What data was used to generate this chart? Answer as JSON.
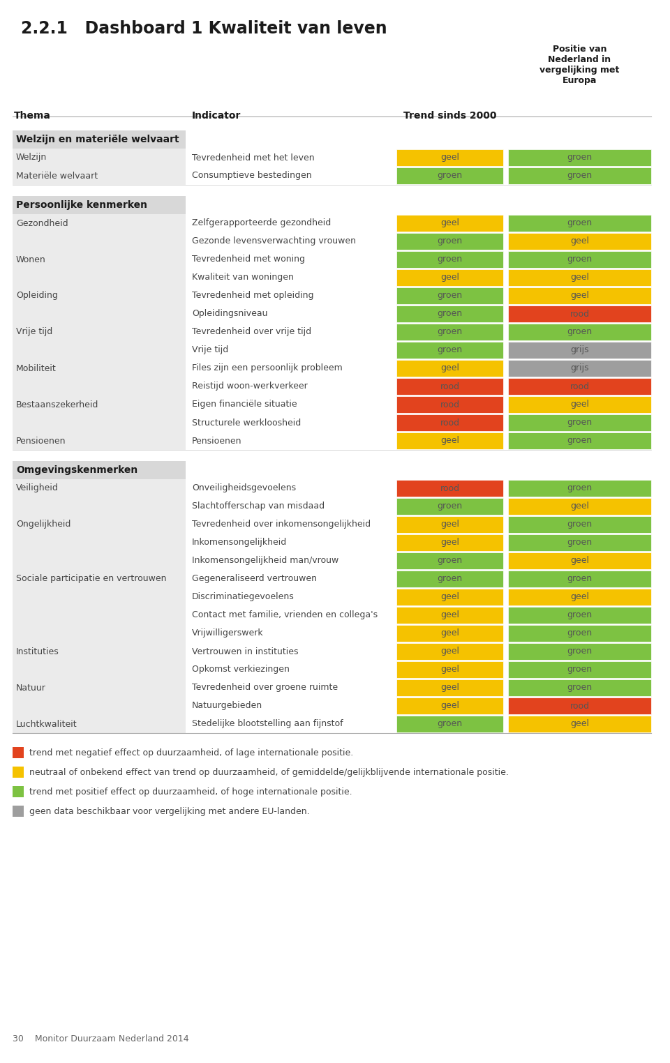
{
  "title": "2.2.1   Dashboard 1 Kwaliteit van leven",
  "colors": {
    "groen": "#7DC242",
    "geel": "#F5C200",
    "rood": "#E2431E",
    "grijs": "#9E9E9E"
  },
  "sections": [
    {
      "title": "Welzijn en materiële welvaart",
      "rows": [
        {
          "thema": "Welzijn",
          "indicator": "Tevredenheid met het leven",
          "trend": "geel",
          "positie": "groen"
        },
        {
          "thema": "Materiële welvaart",
          "indicator": "Consumptieve bestedingen",
          "trend": "groen",
          "positie": "groen"
        }
      ]
    },
    {
      "title": "Persoonlijke kenmerken",
      "rows": [
        {
          "thema": "Gezondheid",
          "indicator": "Zelfgerapporteerde gezondheid",
          "trend": "geel",
          "positie": "groen"
        },
        {
          "thema": "",
          "indicator": "Gezonde levensverwachting vrouwen",
          "trend": "groen",
          "positie": "geel"
        },
        {
          "thema": "Wonen",
          "indicator": "Tevredenheid met woning",
          "trend": "groen",
          "positie": "groen"
        },
        {
          "thema": "",
          "indicator": "Kwaliteit van woningen",
          "trend": "geel",
          "positie": "geel"
        },
        {
          "thema": "Opleiding",
          "indicator": "Tevredenheid met opleiding",
          "trend": "groen",
          "positie": "geel"
        },
        {
          "thema": "",
          "indicator": "Opleidingsniveau",
          "trend": "groen",
          "positie": "rood"
        },
        {
          "thema": "Vrije tijd",
          "indicator": "Tevredenheid over vrije tijd",
          "trend": "groen",
          "positie": "groen"
        },
        {
          "thema": "",
          "indicator": "Vrije tijd",
          "trend": "groen",
          "positie": "grijs"
        },
        {
          "thema": "Mobiliteit",
          "indicator": "Files zijn een persoonlijk probleem",
          "trend": "geel",
          "positie": "grijs"
        },
        {
          "thema": "",
          "indicator": "Reistijd woon-werkverkeer",
          "trend": "rood",
          "positie": "rood"
        },
        {
          "thema": "Bestaanszekerheid",
          "indicator": "Eigen financiële situatie",
          "trend": "rood",
          "positie": "geel"
        },
        {
          "thema": "",
          "indicator": "Structurele werkloosheid",
          "trend": "rood",
          "positie": "groen"
        },
        {
          "thema": "Pensioenen",
          "indicator": "Pensioenen",
          "trend": "geel",
          "positie": "groen"
        }
      ]
    },
    {
      "title": "Omgevingskenmerken",
      "rows": [
        {
          "thema": "Veiligheid",
          "indicator": "Onveiligheidsgevoelens",
          "trend": "rood",
          "positie": "groen"
        },
        {
          "thema": "",
          "indicator": "Slachtofferschap van misdaad",
          "trend": "groen",
          "positie": "geel"
        },
        {
          "thema": "Ongelijkheid",
          "indicator": "Tevredenheid over inkomensongelijkheid",
          "trend": "geel",
          "positie": "groen"
        },
        {
          "thema": "",
          "indicator": "Inkomensongelijkheid",
          "trend": "geel",
          "positie": "groen"
        },
        {
          "thema": "",
          "indicator": "Inkomensongelijkheid man/vrouw",
          "trend": "groen",
          "positie": "geel"
        },
        {
          "thema": "Sociale participatie en vertrouwen",
          "indicator": "Gegeneraliseerd vertrouwen",
          "trend": "groen",
          "positie": "groen"
        },
        {
          "thema": "",
          "indicator": "Discriminatiegevoelens",
          "trend": "geel",
          "positie": "geel"
        },
        {
          "thema": "",
          "indicator": "Contact met familie, vrienden en collega's",
          "trend": "geel",
          "positie": "groen"
        },
        {
          "thema": "",
          "indicator": "Vrijwilligerswerk",
          "trend": "geel",
          "positie": "groen"
        },
        {
          "thema": "Instituties",
          "indicator": "Vertrouwen in instituties",
          "trend": "geel",
          "positie": "groen"
        },
        {
          "thema": "",
          "indicator": "Opkomst verkiezingen",
          "trend": "geel",
          "positie": "groen"
        },
        {
          "thema": "Natuur",
          "indicator": "Tevredenheid over groene ruimte",
          "trend": "geel",
          "positie": "groen"
        },
        {
          "thema": "",
          "indicator": "Natuurgebieden",
          "trend": "geel",
          "positie": "rood"
        },
        {
          "thema": "Luchtkwaliteit",
          "indicator": "Stedelijke blootstelling aan fijnstof",
          "trend": "groen",
          "positie": "geel"
        }
      ]
    }
  ],
  "legend": [
    {
      "color": "#E2431E",
      "text": "trend met negatief effect op duurzaamheid, of lage internationale positie."
    },
    {
      "color": "#F5C200",
      "text": "neutraal of onbekend effect van trend op duurzaamheid, of gemiddelde/gelijkblijvende internationale positie."
    },
    {
      "color": "#7DC242",
      "text": "trend met positief effect op duurzaamheid, of hoge internationale positie."
    },
    {
      "color": "#9E9E9E",
      "text": "geen data beschikbaar voor vergelijking met andere EU-landen."
    }
  ],
  "footer": "30    Monitor Duurzaam Nederland 2014"
}
